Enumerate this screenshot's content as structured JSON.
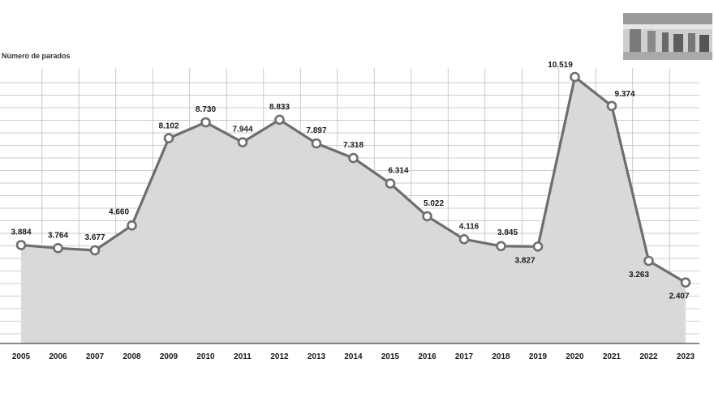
{
  "chart_data": {
    "type": "area",
    "ylabel": "Número de parados",
    "xlabel": "",
    "title": "",
    "categories": [
      "2005",
      "2006",
      "2007",
      "2008",
      "2009",
      "2010",
      "2011",
      "2012",
      "2013",
      "2014",
      "2015",
      "2016",
      "2017",
      "2018",
      "2019",
      "2020",
      "2021",
      "2022",
      "2023"
    ],
    "values": [
      3884,
      3764,
      3677,
      4660,
      8102,
      8730,
      7944,
      8833,
      7897,
      7318,
      6314,
      5022,
      4116,
      3845,
      3827,
      10519,
      9374,
      3263,
      2407
    ],
    "value_labels": [
      "3.884",
      "3.764",
      "3.677",
      "4.660",
      "8.102",
      "8.730",
      "7.944",
      "8.833",
      "7.897",
      "7.318",
      "6.314",
      "5.022",
      "4.116",
      "3.845",
      "3.827",
      "10.519",
      "9.374",
      "3.263",
      "2.407"
    ],
    "ylim": [
      0,
      11000
    ],
    "grid": true,
    "colors": {
      "line": "#6e6e6e",
      "fill": "#d9d9d9",
      "grid": "#bdbdbd",
      "marker_fill": "#ffffff"
    }
  },
  "photo": {
    "icon": "street-crowd-photo"
  }
}
